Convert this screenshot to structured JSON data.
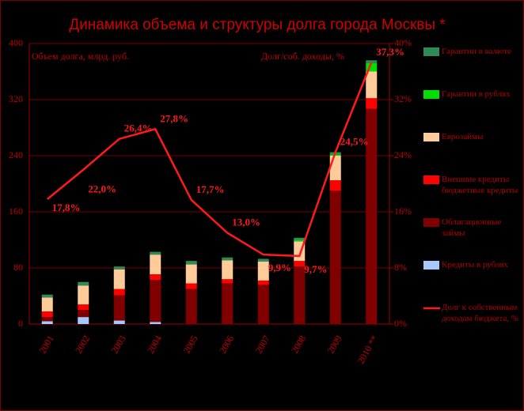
{
  "chart_data": {
    "type": "stacked-bar-line",
    "title": "Динамика объема и структуры долга города Москвы *",
    "y_label": "Объем долга, млрд. руб.",
    "y2_label": "Долг/соб. доходы, %",
    "categories": [
      "2001",
      "2002",
      "2003",
      "2004",
      "2005",
      "2006",
      "2007",
      "2008",
      "2009",
      "2010 **"
    ],
    "ylim": [
      0,
      400
    ],
    "yticks": [
      0,
      80,
      160,
      240,
      320,
      400
    ],
    "y2lim": [
      0,
      40
    ],
    "y2ticks": [
      {
        "value": 0,
        "label": "0%"
      },
      {
        "value": 8,
        "label": "8%"
      },
      {
        "value": 16,
        "label": "16%"
      },
      {
        "value": 24,
        "label": "24%"
      },
      {
        "value": 32,
        "label": "32%"
      },
      {
        "value": 40,
        "label": "40%"
      }
    ],
    "grid": true,
    "series": [
      {
        "name": "Гарантии в валюте",
        "color": "#2e8b57",
        "values": [
          4,
          5,
          4,
          4,
          5,
          4,
          4,
          3,
          3,
          4
        ]
      },
      {
        "name": "Гарантии в рублях",
        "color": "#00e000",
        "values": [
          0,
          0,
          0,
          0,
          0,
          0,
          0,
          2,
          2,
          12
        ]
      },
      {
        "name": "Еврозаймы",
        "color": "#ffcc99",
        "values": [
          20,
          27,
          28,
          28,
          27,
          27,
          27,
          28,
          35,
          38
        ]
      },
      {
        "name": "Внешние кредиты бюджетные кредиты",
        "color": "#ff0000",
        "values": [
          8,
          8,
          9,
          8,
          8,
          6,
          6,
          8,
          15,
          15
        ]
      },
      {
        "name": "Облигационные займы",
        "color": "#800000",
        "values": [
          6,
          10,
          36,
          60,
          50,
          58,
          56,
          82,
          190,
          307
        ]
      },
      {
        "name": "Кредиты в рублях",
        "color": "#a6c8ff",
        "values": [
          4,
          10,
          5,
          3,
          0,
          0,
          0,
          0,
          0,
          0
        ]
      },
      {
        "name": "Долг к собственным доходам бюджета, %",
        "color": "#ff1a1a",
        "axis": "y2",
        "values": [
          17.8,
          22.0,
          26.4,
          27.8,
          17.7,
          13.0,
          9.9,
          9.7,
          24.5,
          37.3
        ],
        "value_labels": [
          "17,8%",
          "22,0%",
          "26,4%",
          "27,8%",
          "17,7%",
          "13,0%",
          "9,9%",
          "9,7%",
          "24,5%",
          "37,3%"
        ]
      }
    ]
  }
}
